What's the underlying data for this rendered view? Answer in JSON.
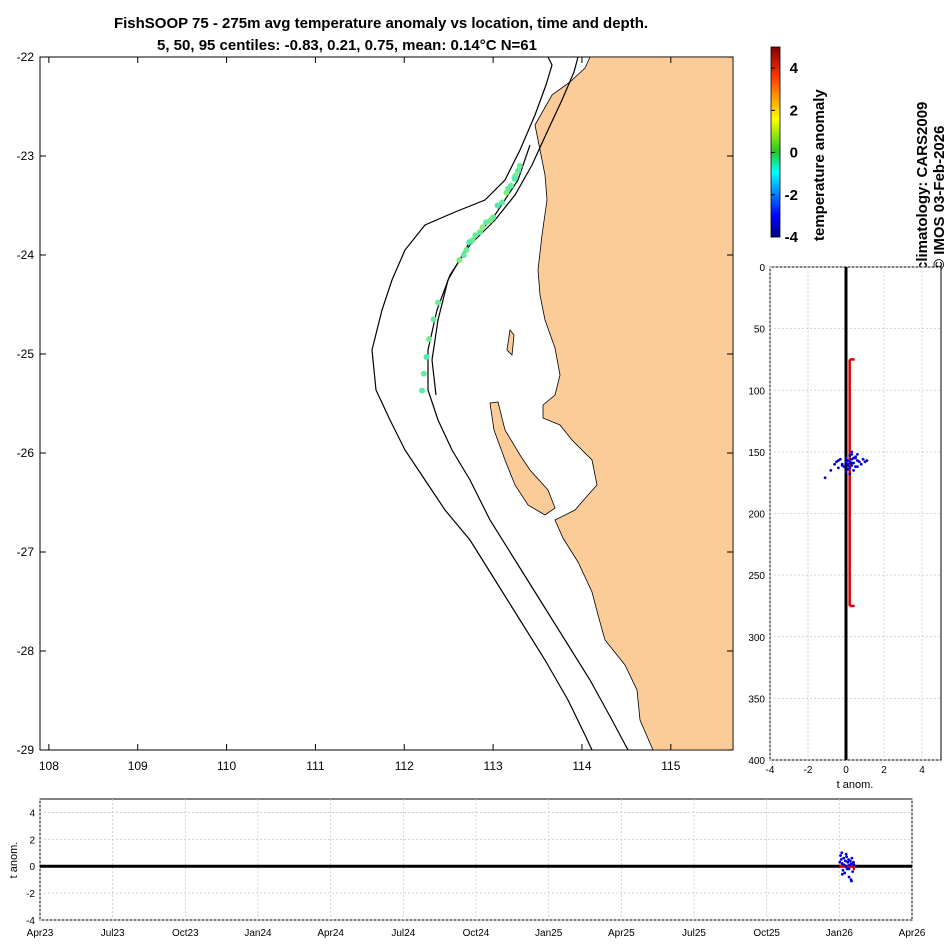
{
  "title": {
    "line1": "FishSOOP 75 - 275m avg temperature anomaly vs location, time and depth.",
    "line2": "5, 50, 95 centiles: -0.83, 0.21, 0.75, mean: 0.14°C N=61"
  },
  "side_text": {
    "climatology": "climatology: CARS2009",
    "copyright": "© IMOS 03-Feb-2026"
  },
  "colors": {
    "land": "#fbcb98",
    "depth_bar": "#dd0000",
    "scatter": "#0000dd",
    "track": "#22cc22"
  },
  "chart_data": [
    {
      "type": "scatter",
      "name": "map",
      "xlim": [
        107.9,
        115.7
      ],
      "ylim": [
        -29,
        -22
      ],
      "x_ticks": [
        "108",
        "109",
        "110",
        "111",
        "112",
        "113",
        "114",
        "115"
      ],
      "y_ticks": [
        "-22",
        "-23",
        "-24",
        "-25",
        "-26",
        "-27",
        "-28",
        "-29"
      ],
      "points_lon": [
        113.3,
        113.28,
        113.25,
        113.24,
        113.2,
        113.17,
        113.15,
        113.1,
        113.05,
        113.0,
        112.97,
        112.92,
        112.88,
        112.85,
        112.8,
        112.77,
        112.73,
        112.7,
        112.67,
        112.62,
        112.38,
        112.33,
        112.28,
        112.25,
        112.22,
        112.2
      ],
      "points_lat": [
        -23.1,
        -23.15,
        -23.2,
        -23.23,
        -23.3,
        -23.33,
        -23.37,
        -23.47,
        -23.5,
        -23.62,
        -23.65,
        -23.67,
        -23.72,
        -23.77,
        -23.8,
        -23.85,
        -23.87,
        -23.95,
        -24.0,
        -24.05,
        -24.48,
        -24.65,
        -24.85,
        -25.03,
        -25.2,
        -25.37
      ],
      "point_anomaly": [
        0.3,
        0.2,
        0.4,
        0.1,
        0.3,
        0.2,
        0.5,
        0.2,
        0.1,
        0.3,
        0.4,
        0.2,
        0.6,
        0.3,
        0.2,
        0.4,
        0.1,
        0.3,
        0.2,
        0.5,
        0.3,
        0.2,
        0.4,
        0.1,
        0.3,
        0.2
      ]
    },
    {
      "type": "bar",
      "name": "colorbar",
      "label": "temperature anomaly",
      "ylim": [
        -4,
        5
      ],
      "ticks": [
        "4",
        "2",
        "0",
        "-2",
        "-4"
      ],
      "tick_values": [
        4,
        2,
        0,
        -2,
        -4
      ]
    },
    {
      "type": "scatter",
      "name": "depth-profile",
      "xlabel": "t anom.",
      "xlim": [
        -4,
        5
      ],
      "ylim": [
        0,
        400
      ],
      "x_ticks": [
        "-4",
        "-2",
        "0",
        "2",
        "4"
      ],
      "x_tick_values": [
        -4,
        -2,
        0,
        2,
        4
      ],
      "y_ticks": [
        "0",
        "50",
        "100",
        "150",
        "200",
        "250",
        "300",
        "350",
        "400"
      ],
      "y_tick_values": [
        0,
        50,
        100,
        150,
        200,
        250,
        300,
        350,
        400
      ],
      "depth_range": [
        75,
        275
      ],
      "anomaly_mean": 0.14,
      "scatter_anom": [
        -1.1,
        -0.8,
        -0.6,
        -0.5,
        -0.4,
        -0.3,
        -0.2,
        -0.1,
        0.0,
        0.0,
        0.1,
        0.1,
        0.2,
        0.2,
        0.2,
        0.3,
        0.3,
        0.3,
        0.4,
        0.4,
        0.5,
        0.5,
        0.6,
        0.6,
        0.7,
        0.8,
        0.9,
        1.0,
        1.1,
        -0.2,
        0.1,
        0.3,
        0.5,
        0.2,
        0.4,
        0.0,
        0.6,
        -0.4,
        0.3,
        0.1
      ],
      "scatter_depth": [
        171,
        165,
        160,
        158,
        163,
        156,
        160,
        162,
        155,
        166,
        157,
        160,
        153,
        158,
        163,
        152,
        156,
        161,
        155,
        159,
        154,
        162,
        157,
        152,
        158,
        160,
        156,
        158,
        157,
        161,
        164,
        150,
        155,
        168,
        165,
        158,
        162,
        157,
        159,
        161
      ]
    },
    {
      "type": "scatter",
      "name": "time-series",
      "ylabel": "t anom.",
      "ylim": [
        -4,
        5
      ],
      "x_ticks": [
        "Apr23",
        "Jul23",
        "Oct23",
        "Jan24",
        "Apr24",
        "Jul24",
        "Oct24",
        "Jan25",
        "Apr25",
        "Jul25",
        "Oct25",
        "Jan26",
        "Apr26"
      ],
      "y_ticks": [
        "4",
        "2",
        "0",
        "-2",
        "-4"
      ],
      "y_tick_values": [
        4,
        2,
        0,
        -2,
        -4
      ],
      "xlim_months": [
        0,
        36
      ],
      "depth_bar_months": [
        33.0,
        33.6
      ],
      "scatter_month": [
        33.02,
        33.05,
        33.08,
        33.1,
        33.12,
        33.15,
        33.18,
        33.2,
        33.22,
        33.25,
        33.28,
        33.3,
        33.32,
        33.35,
        33.38,
        33.4,
        33.42,
        33.45,
        33.48,
        33.5,
        33.52,
        33.55,
        33.58,
        33.6,
        33.12,
        33.28,
        33.4,
        33.5
      ],
      "scatter_anom": [
        0.3,
        0.8,
        0.5,
        1.0,
        0.2,
        -0.3,
        0.6,
        0.1,
        -0.5,
        0.4,
        0.0,
        0.7,
        -0.2,
        0.3,
        0.5,
        -0.8,
        0.1,
        0.4,
        -1.0,
        0.2,
        0.6,
        -0.4,
        0.3,
        0.1,
        -0.6,
        0.9,
        -0.2,
        -1.1
      ]
    }
  ]
}
